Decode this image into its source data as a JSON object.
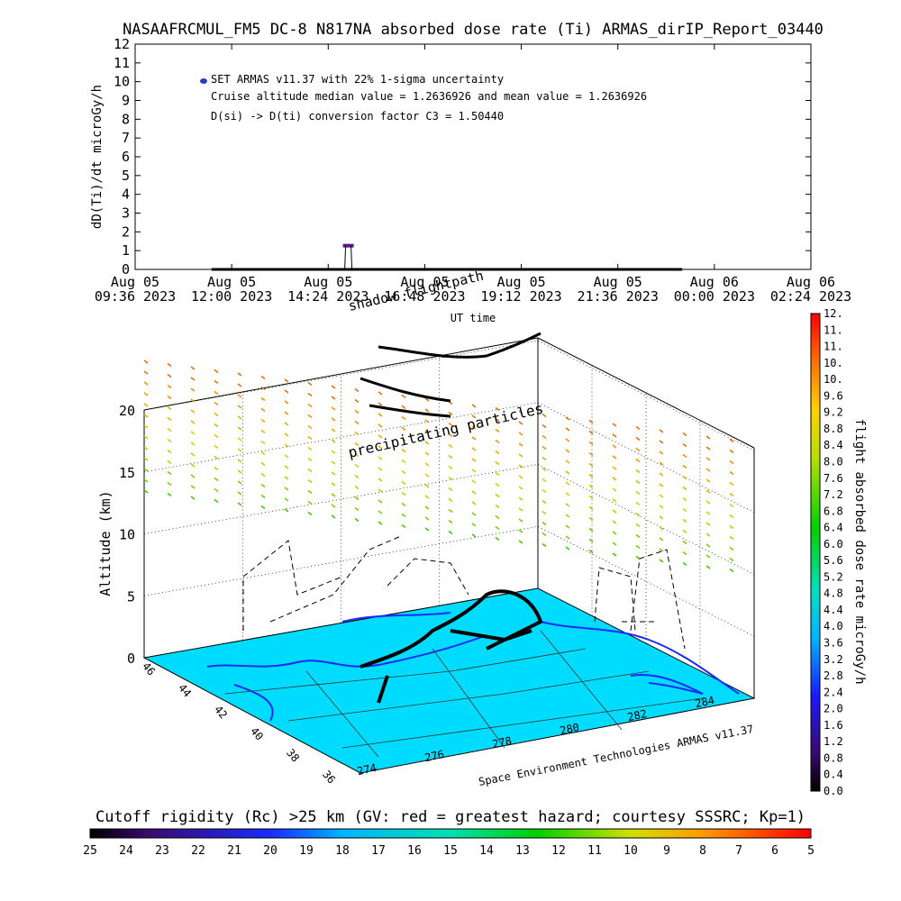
{
  "page_title": "NASAAFRCMUL_FM5 DC-8   N817NA absorbed dose rate (Ti) ARMAS_dirIP_Report_03440",
  "chart_data": [
    {
      "type": "line",
      "ylabel": "dD(Ti)/dt microGy/h",
      "xlabel": "UT time",
      "ylim": [
        0,
        12
      ],
      "yticks": [
        "0",
        "1",
        "2",
        "3",
        "4",
        "5",
        "6",
        "7",
        "8",
        "9",
        "10",
        "11",
        "12"
      ],
      "xticks": [
        {
          "day": "Aug 05",
          "time": "09:36 2023"
        },
        {
          "day": "Aug 05",
          "time": "12:00 2023"
        },
        {
          "day": "Aug 05",
          "time": "14:24 2023"
        },
        {
          "day": "Aug 05",
          "time": "16:48 2023"
        },
        {
          "day": "Aug 05",
          "time": "19:12 2023"
        },
        {
          "day": "Aug 05",
          "time": "21:36 2023"
        },
        {
          "day": "Aug 06",
          "time": "00:00 2023"
        },
        {
          "day": "Aug 06",
          "time": "02:24 2023"
        }
      ],
      "legend_label": "SET ARMAS v11.37 with 22% 1-sigma uncertainty",
      "annotations": [
        "Cruise altitude median value = 1.2636926 and mean value = 1.2636926",
        "D(si) -> D(ti) conversion factor C3 = 1.50440"
      ],
      "series": [
        {
          "name": "SET ARMAS v11.37 with 22% 1-sigma uncertainty",
          "points": [
            [
              14.9,
              1.2636926
            ]
          ],
          "color": "#5a1a8a"
        }
      ],
      "baseline_range": [
        11.5,
        23.2
      ],
      "legend_color": "#1f3fbf"
    },
    {
      "type": "scatter",
      "zlabel": "Altitude (km)",
      "zticks": [
        "0",
        "5",
        "10",
        "15",
        "20"
      ],
      "lat_ticks": [
        "46",
        "44",
        "42",
        "40",
        "38",
        "36"
      ],
      "lon_ticks": [
        "274",
        "276",
        "278",
        "280",
        "282",
        "284"
      ],
      "annotations": [
        "precipitating particles",
        "shadow flightpath",
        "UT time"
      ],
      "credit": "Space Environment Technologies ARMAS v11.37",
      "colorbar": {
        "label": "flight absorbed dose rate microGy/h",
        "ticks": [
          "0.0",
          "0.4",
          "0.8",
          "1.2",
          "1.6",
          "2.0",
          "2.4",
          "2.8",
          "3.2",
          "3.6",
          "4.0",
          "4.4",
          "4.8",
          "5.2",
          "5.6",
          "6.0",
          "6.4",
          "6.8",
          "7.2",
          "7.6",
          "8.0",
          "8.4",
          "8.8",
          "9.2",
          "9.6",
          "10.",
          "10.",
          "11.",
          "11.",
          "12."
        ]
      }
    },
    {
      "type": "heatmap",
      "title": "Cutoff rigidity (Rc) >25 km (GV: red = greatest hazard; courtesy SSSRC; Kp=1)",
      "ticks": [
        "25",
        "24",
        "23",
        "22",
        "21",
        "20",
        "19",
        "18",
        "17",
        "16",
        "15",
        "14",
        "13",
        "12",
        "11",
        "10",
        "9",
        "8",
        "7",
        "6",
        "5"
      ]
    }
  ]
}
